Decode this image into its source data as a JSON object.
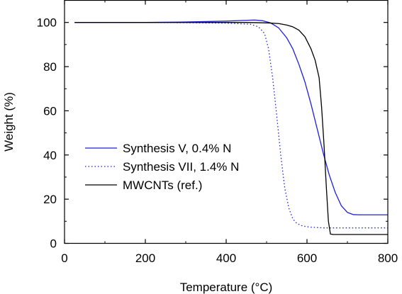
{
  "chart_data": {
    "type": "line",
    "xlabel": "Temperature (°C)",
    "ylabel": "Weight (%)",
    "xlim": [
      0,
      800
    ],
    "ylim": [
      0,
      110
    ],
    "xticks": [
      0,
      200,
      400,
      600,
      800
    ],
    "yticks": [
      0,
      20,
      40,
      60,
      80,
      100
    ],
    "grid": false,
    "legend_position": "center-left",
    "series": [
      {
        "name": "Synthesis V, 0.4% N",
        "color": "#1f1fd1",
        "style": "solid",
        "x": [
          25,
          100,
          200,
          300,
          400,
          440,
          470,
          490,
          510,
          530,
          550,
          565,
          580,
          595,
          610,
          625,
          640,
          655,
          670,
          685,
          700,
          715,
          730,
          760,
          800
        ],
        "y": [
          100,
          100,
          100,
          100.2,
          100.6,
          100.9,
          101.1,
          100.8,
          99.8,
          97.5,
          93,
          88,
          81,
          73,
          63,
          52,
          41,
          31,
          23,
          17,
          14,
          13,
          12.9,
          12.9,
          12.9
        ]
      },
      {
        "name": "Synthesis VII, 1.4% N",
        "color": "#1f1fd1",
        "style": "dotted",
        "x": [
          25,
          100,
          200,
          300,
          400,
          460,
          480,
          495,
          505,
          515,
          525,
          535,
          545,
          555,
          565,
          575,
          590,
          610,
          640,
          700,
          800
        ],
        "y": [
          100,
          100,
          100,
          99.9,
          99.7,
          99.2,
          98,
          95,
          88,
          75,
          58,
          40,
          25,
          16,
          11,
          9,
          7.8,
          7.3,
          7,
          7,
          7
        ]
      },
      {
        "name": "MWCNTs (ref.)",
        "color": "#000000",
        "style": "solid",
        "x": [
          25,
          100,
          200,
          300,
          400,
          450,
          500,
          530,
          550,
          565,
          580,
          595,
          610,
          620,
          630,
          636,
          642,
          648,
          653,
          658,
          665,
          700,
          800
        ],
        "y": [
          100,
          100,
          100,
          100,
          100,
          100,
          99.8,
          99.5,
          98.8,
          98,
          96.5,
          93.5,
          88,
          83,
          75,
          62,
          45,
          25,
          10,
          4.2,
          4,
          4,
          4
        ]
      }
    ]
  }
}
